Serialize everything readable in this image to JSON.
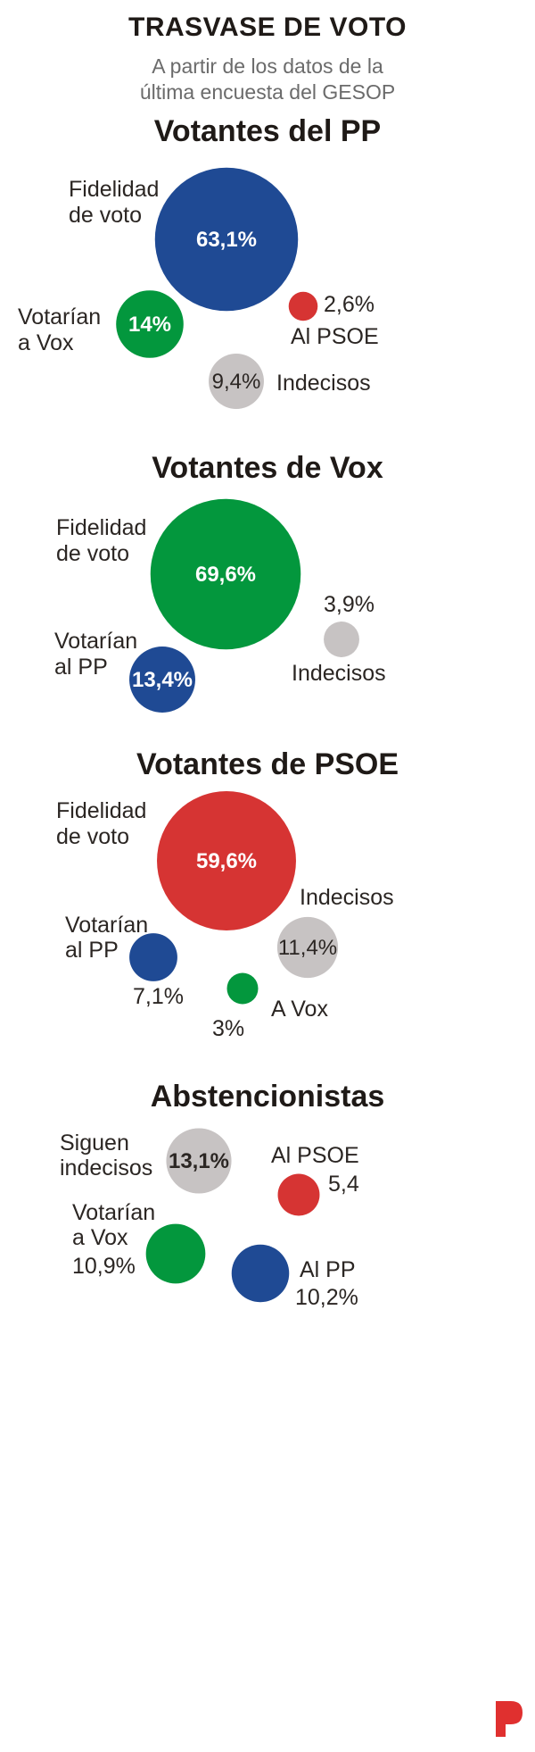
{
  "header": {
    "title": "TRASVASE DE VOTO",
    "subtitle_line1": "A partir de los datos de la",
    "subtitle_line2": "última encuesta del GESOP"
  },
  "colors": {
    "pp": "#1f4a94",
    "vox": "#03973d",
    "psoe": "#d63433",
    "grey": "#c7c3c3"
  },
  "chart_data": [
    {
      "type": "bubble",
      "title": "Votantes del PP",
      "series": [
        {
          "name": "Fidelidad de voto",
          "value": 63.1,
          "label": "63,1%",
          "color": "pp"
        },
        {
          "name": "Votarían a Vox",
          "value": 14,
          "label": "14%",
          "color": "vox"
        },
        {
          "name": "Al PSOE",
          "value": 2.6,
          "label": "2,6%",
          "color": "psoe"
        },
        {
          "name": "Indecisos",
          "value": 9.4,
          "label": "9,4%",
          "color": "grey"
        }
      ]
    },
    {
      "type": "bubble",
      "title": "Votantes de Vox",
      "series": [
        {
          "name": "Fidelidad de voto",
          "value": 69.6,
          "label": "69,6%",
          "color": "vox"
        },
        {
          "name": "Votarían al PP",
          "value": 13.4,
          "label": "13,4%",
          "color": "pp"
        },
        {
          "name": "Indecisos",
          "value": 3.9,
          "label": "3,9%",
          "color": "grey"
        }
      ]
    },
    {
      "type": "bubble",
      "title": "Votantes de PSOE",
      "series": [
        {
          "name": "Fidelidad de voto",
          "value": 59.6,
          "label": "59,6%",
          "color": "psoe"
        },
        {
          "name": "Indecisos",
          "value": 11.4,
          "label": "11,4%",
          "color": "grey"
        },
        {
          "name": "Votarían al PP",
          "value": 7.1,
          "label": "7,1%",
          "color": "pp"
        },
        {
          "name": "A Vox",
          "value": 3,
          "label": "3%",
          "color": "vox"
        }
      ]
    },
    {
      "type": "bubble",
      "title": "Abstencionistas",
      "series": [
        {
          "name": "Siguen indecisos",
          "value": 13.1,
          "label": "13,1%",
          "color": "grey"
        },
        {
          "name": "Al PSOE",
          "value": 5.4,
          "label": "5,4",
          "color": "psoe"
        },
        {
          "name": "Votarían a Vox",
          "value": 10.9,
          "label": "10,9%",
          "color": "vox"
        },
        {
          "name": "Al PP",
          "value": 10.2,
          "label": "10,2%",
          "color": "pp"
        }
      ]
    }
  ]
}
